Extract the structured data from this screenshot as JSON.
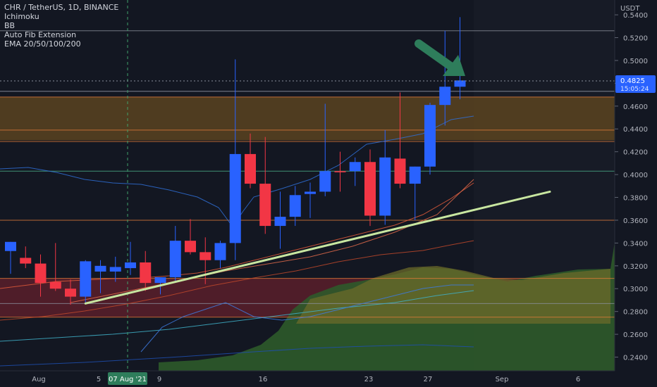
{
  "legend": {
    "symbol_line": "CHR / TetherUS, 1D, BINANCE",
    "indicator_1": "Ichimoku",
    "indicator_2": "BB",
    "indicator_3": "Auto Fib Extension",
    "indicator_4": "EMA 20/50/100/200"
  },
  "price_axis": {
    "currency": "USDT",
    "ticks": [
      "0.5400",
      "0.5200",
      "0.5000",
      "0.4800",
      "0.4600",
      "0.4400",
      "0.4200",
      "0.4000",
      "0.3800",
      "0.3600",
      "0.3400",
      "0.3200",
      "0.3000",
      "0.2800",
      "0.2600",
      "0.2400"
    ],
    "last_price": "0.4825",
    "countdown": "15:05:24"
  },
  "time_axis": {
    "labels": [
      "Aug",
      "5",
      "07 Aug '21",
      "9",
      "16",
      "23",
      "27",
      "Sep",
      "6"
    ]
  },
  "colors": {
    "background": "#131722",
    "up": "#2962ff",
    "down": "#f23645",
    "trendline": "#c8e6a0",
    "arrow": "#2e7d5b",
    "fib_upper_zone": "#5b4320",
    "fib_lower_zone": "#5a1f2a"
  },
  "chart_data": {
    "type": "candlestick",
    "title": "CHR / TetherUS, 1D, BINANCE",
    "ylim": [
      0.228,
      0.553
    ],
    "candles": [
      {
        "date": "Jul 30",
        "open": 0.333,
        "high": 0.341,
        "low": 0.313,
        "close": 0.341
      },
      {
        "date": "Jul 31",
        "open": 0.327,
        "high": 0.337,
        "low": 0.318,
        "close": 0.322
      },
      {
        "date": "Aug 1",
        "open": 0.322,
        "high": 0.33,
        "low": 0.293,
        "close": 0.305
      },
      {
        "date": "Aug 2",
        "open": 0.306,
        "high": 0.34,
        "low": 0.298,
        "close": 0.3
      },
      {
        "date": "Aug 3",
        "open": 0.3,
        "high": 0.308,
        "low": 0.286,
        "close": 0.293
      },
      {
        "date": "Aug 4",
        "open": 0.293,
        "high": 0.325,
        "low": 0.288,
        "close": 0.324
      },
      {
        "date": "Aug 5",
        "open": 0.315,
        "high": 0.325,
        "low": 0.296,
        "close": 0.32
      },
      {
        "date": "Aug 6",
        "open": 0.315,
        "high": 0.328,
        "low": 0.306,
        "close": 0.319
      },
      {
        "date": "Aug 7",
        "open": 0.318,
        "high": 0.341,
        "low": 0.312,
        "close": 0.323
      },
      {
        "date": "Aug 8",
        "open": 0.323,
        "high": 0.333,
        "low": 0.298,
        "close": 0.305
      },
      {
        "date": "Aug 9",
        "open": 0.305,
        "high": 0.31,
        "low": 0.295,
        "close": 0.31
      },
      {
        "date": "Aug 10",
        "open": 0.31,
        "high": 0.355,
        "low": 0.307,
        "close": 0.342
      },
      {
        "date": "Aug 11",
        "open": 0.342,
        "high": 0.361,
        "low": 0.33,
        "close": 0.332
      },
      {
        "date": "Aug 12",
        "open": 0.332,
        "high": 0.345,
        "low": 0.304,
        "close": 0.325
      },
      {
        "date": "Aug 13",
        "open": 0.325,
        "high": 0.342,
        "low": 0.318,
        "close": 0.34
      },
      {
        "date": "Aug 14",
        "open": 0.34,
        "high": 0.501,
        "low": 0.325,
        "close": 0.418
      },
      {
        "date": "Aug 15",
        "open": 0.418,
        "high": 0.436,
        "low": 0.388,
        "close": 0.392
      },
      {
        "date": "Aug 16",
        "open": 0.392,
        "high": 0.433,
        "low": 0.348,
        "close": 0.355
      },
      {
        "date": "Aug 17",
        "open": 0.355,
        "high": 0.385,
        "low": 0.335,
        "close": 0.363
      },
      {
        "date": "Aug 18",
        "open": 0.363,
        "high": 0.39,
        "low": 0.355,
        "close": 0.382
      },
      {
        "date": "Aug 19",
        "open": 0.383,
        "high": 0.393,
        "low": 0.362,
        "close": 0.385
      },
      {
        "date": "Aug 20",
        "open": 0.385,
        "high": 0.462,
        "low": 0.381,
        "close": 0.403
      },
      {
        "date": "Aug 21",
        "open": 0.403,
        "high": 0.42,
        "low": 0.385,
        "close": 0.402
      },
      {
        "date": "Aug 22",
        "open": 0.403,
        "high": 0.415,
        "low": 0.39,
        "close": 0.411
      },
      {
        "date": "Aug 23",
        "open": 0.411,
        "high": 0.422,
        "low": 0.355,
        "close": 0.364
      },
      {
        "date": "Aug 24",
        "open": 0.364,
        "high": 0.439,
        "low": 0.356,
        "close": 0.415
      },
      {
        "date": "Aug 25",
        "open": 0.414,
        "high": 0.472,
        "low": 0.388,
        "close": 0.392
      },
      {
        "date": "Aug 26",
        "open": 0.392,
        "high": 0.407,
        "low": 0.36,
        "close": 0.407
      },
      {
        "date": "Aug 27",
        "open": 0.407,
        "high": 0.463,
        "low": 0.4,
        "close": 0.461
      },
      {
        "date": "Aug 28",
        "open": 0.461,
        "high": 0.526,
        "low": 0.443,
        "close": 0.477
      },
      {
        "date": "Aug 29",
        "open": 0.477,
        "high": 0.538,
        "low": 0.466,
        "close": 0.4825
      }
    ],
    "fib_levels": [
      0.526,
      0.473,
      0.468,
      0.439,
      0.429,
      0.403,
      0.36,
      0.309,
      0.287,
      0.275
    ],
    "fib_zones": [
      {
        "from": 0.43,
        "to": 0.468,
        "color": "#5b4320"
      },
      {
        "from": 0.275,
        "to": 0.309,
        "color": "#5a1f2a"
      }
    ],
    "trendline": {
      "start": {
        "date": "Aug 4",
        "price": 0.287
      },
      "end": {
        "date": "Sep 5",
        "price": 0.385
      }
    },
    "last_price": 0.4825
  }
}
